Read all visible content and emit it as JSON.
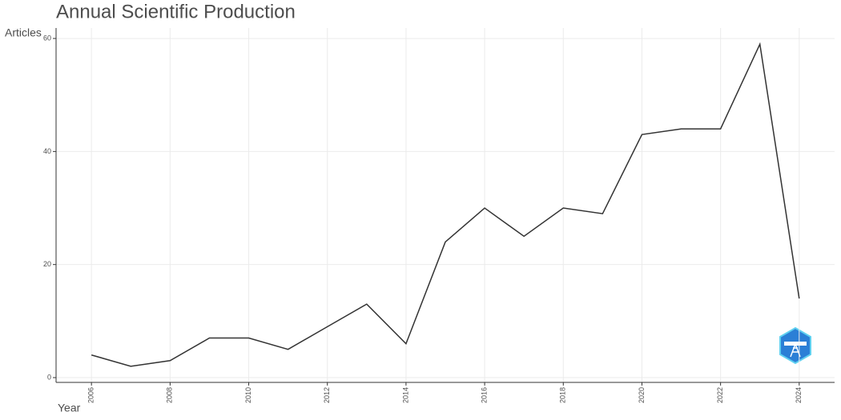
{
  "chart_data": {
    "type": "line",
    "title": "Annual Scientific Production",
    "x_label": "Year",
    "y_label": "Articles",
    "x": [
      2006,
      2007,
      2008,
      2009,
      2010,
      2011,
      2012,
      2013,
      2014,
      2015,
      2016,
      2017,
      2018,
      2019,
      2020,
      2021,
      2022,
      2023,
      2024
    ],
    "series": [
      {
        "name": "Articles",
        "color": "#333333",
        "values": [
          4,
          2,
          3,
          7,
          7,
          5,
          9,
          13,
          6,
          24,
          30,
          25,
          30,
          29,
          43,
          44,
          44,
          59,
          14
        ]
      }
    ],
    "xlim": [
      2005.1,
      2024.9
    ],
    "xticks": [
      2006,
      2008,
      2010,
      2012,
      2014,
      2016,
      2018,
      2020,
      2022,
      2024
    ],
    "ylim": [
      -0.85,
      61.85
    ],
    "yticks": [
      0,
      20,
      40,
      60
    ],
    "grid": true
  }
}
